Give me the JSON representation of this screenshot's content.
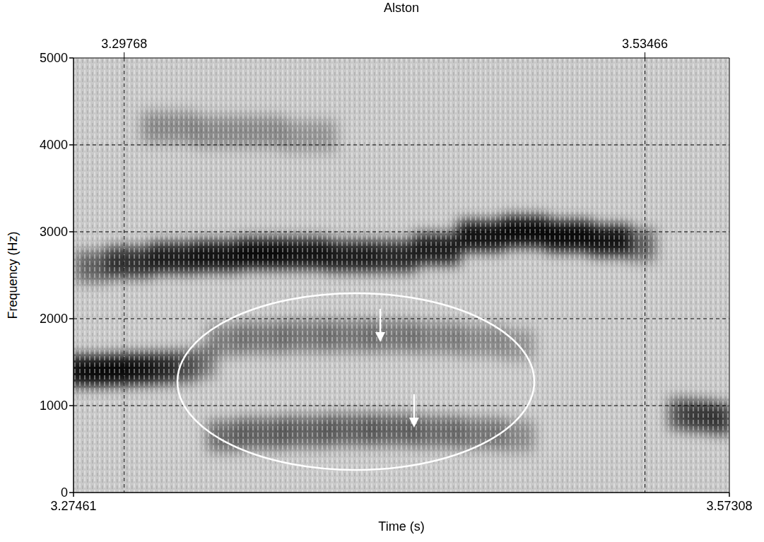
{
  "chart_data": {
    "type": "spectrogram",
    "title": "Alston",
    "x_label": "Time (s)",
    "y_label": "Frequency (Hz)",
    "xlim": [
      3.27461,
      3.57308
    ],
    "xticks": [
      3.27461,
      3.57308
    ],
    "cursors": [
      3.29768,
      3.53466
    ],
    "ylim": [
      0,
      5000
    ],
    "yticks": [
      0,
      1000,
      2000,
      3000,
      4000,
      5000
    ],
    "grid": true,
    "series": [
      {
        "x": [
          3.28,
          3.3,
          3.32,
          3.34,
          3.36,
          3.38,
          3.4,
          3.42,
          3.44,
          3.46,
          3.48,
          3.5,
          3.52,
          3.535
        ],
        "values": [
          2600,
          2650,
          2700,
          2720,
          2750,
          2750,
          2720,
          2720,
          2800,
          2950,
          3000,
          2950,
          2900,
          2850
        ],
        "strength": [
          0.5,
          0.75,
          0.85,
          0.9,
          0.95,
          0.9,
          0.85,
          0.8,
          0.85,
          0.9,
          0.95,
          0.95,
          0.9,
          0.5
        ]
      },
      {
        "x": [
          3.275,
          3.285,
          3.295,
          3.305,
          3.315,
          3.325,
          3.335
        ],
        "values": [
          1400,
          1400,
          1410,
          1420,
          1430,
          1450,
          1500
        ],
        "strength": [
          0.9,
          0.95,
          0.95,
          0.9,
          0.8,
          0.6,
          0.4
        ]
      },
      {
        "x": [
          3.34,
          3.36,
          3.38,
          3.4,
          3.42,
          3.44,
          3.46,
          3.48
        ],
        "values": [
          1750,
          1780,
          1800,
          1800,
          1800,
          1780,
          1750,
          1700
        ],
        "strength": [
          0.35,
          0.4,
          0.4,
          0.4,
          0.4,
          0.35,
          0.3,
          0.25
        ]
      },
      {
        "x": [
          3.34,
          3.36,
          3.38,
          3.4,
          3.42,
          3.44,
          3.46,
          3.48
        ],
        "values": [
          650,
          680,
          700,
          720,
          720,
          700,
          680,
          650
        ],
        "strength": [
          0.45,
          0.5,
          0.5,
          0.5,
          0.5,
          0.45,
          0.4,
          0.3
        ]
      },
      {
        "x": [
          3.55,
          3.56,
          3.57
        ],
        "values": [
          900,
          880,
          850
        ],
        "strength": [
          0.6,
          0.7,
          0.7
        ]
      },
      {
        "x": [
          3.31,
          3.35,
          3.39
        ],
        "values": [
          4200,
          4150,
          4100
        ],
        "strength": [
          0.3,
          0.3,
          0.25
        ]
      }
    ],
    "ellipse": {
      "x": [
        3.3219,
        3.4843
      ],
      "y": [
        260,
        2293
      ]
    },
    "arrows": [
      {
        "x": 3.4142,
        "y": [
          2114,
          1732
        ]
      },
      {
        "x": 3.4296,
        "y": [
          1130,
          748
        ]
      }
    ]
  }
}
